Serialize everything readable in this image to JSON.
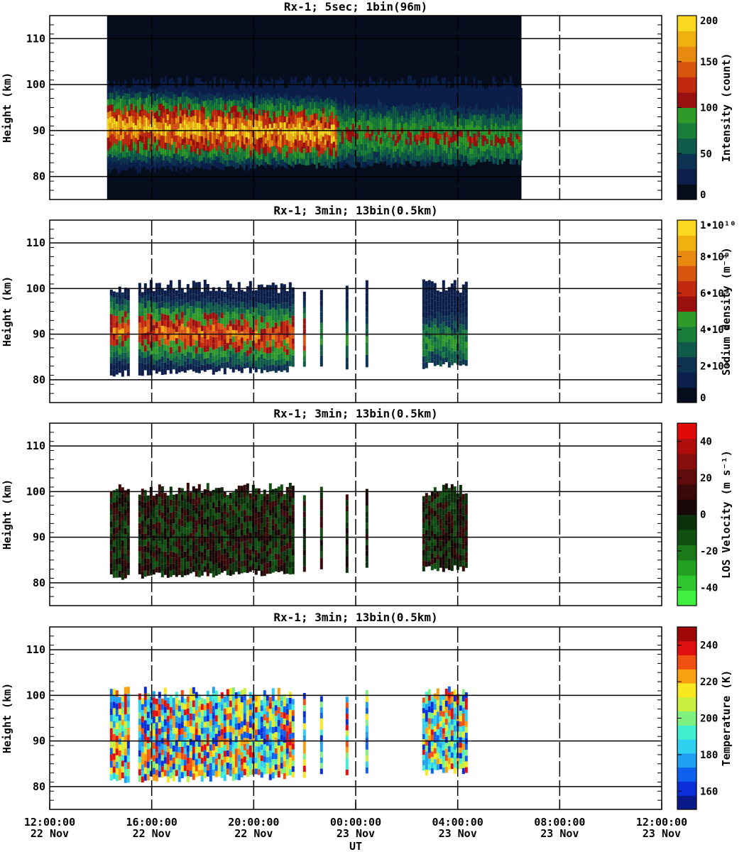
{
  "chart_data": [
    {
      "type": "heatmap",
      "title": "Rx-1;  5sec; 1bin(96m)",
      "ylabel": "Height (km)",
      "ylim": [
        75,
        115
      ],
      "yticks": [
        "80",
        "90",
        "100",
        "110"
      ],
      "colorbar": {
        "label": "Intensity (count)",
        "range": [
          0,
          200
        ],
        "ticks": [
          "0",
          "50",
          "100",
          "150",
          "200"
        ],
        "colors": [
          "#060d1c",
          "#0b1f4a",
          "#0e3352",
          "#0f5a48",
          "#1a7e3a",
          "#2f9a2a",
          "#9a1010",
          "#c22a10",
          "#d85510",
          "#e88a10",
          "#f0b010",
          "#f8d820"
        ]
      },
      "x_range": [
        "14:15:00 22 Nov",
        "06:30:00 23 Nov"
      ],
      "layer_peak_km": 91,
      "layer_span_km": [
        83,
        100
      ]
    },
    {
      "type": "heatmap",
      "title": "Rx-1; 3min; 13bin(0.5km)",
      "ylabel": "Height (km)",
      "ylim": [
        75,
        115
      ],
      "yticks": [
        "80",
        "90",
        "100",
        "110"
      ],
      "colorbar": {
        "label": "Sodium density (m⁻³)",
        "range": [
          0,
          10000000000.0
        ],
        "ticks": [
          "0",
          "2•10⁹",
          "4•10⁹",
          "6•10⁹",
          "8•10⁹",
          "1•10¹⁰"
        ],
        "colors": [
          "#060d1c",
          "#0b1f4a",
          "#0e3352",
          "#0f5a48",
          "#1a7e3a",
          "#2f9a2a",
          "#9a1010",
          "#c22a10",
          "#d85510",
          "#e88a10",
          "#f0b010",
          "#f8d820"
        ]
      },
      "x_range": [
        "14:15:00 22 Nov",
        "04:20:00 23 Nov"
      ]
    },
    {
      "type": "heatmap",
      "title": "Rx-1; 3min; 13bin(0.5km)",
      "ylabel": "Height (km)",
      "ylim": [
        75,
        115
      ],
      "yticks": [
        "80",
        "90",
        "100",
        "110"
      ],
      "colorbar": {
        "label": "LOS Velocity (m s⁻¹)",
        "range": [
          -50,
          50
        ],
        "ticks": [
          "-40",
          "-20",
          "0",
          "20",
          "40"
        ],
        "colors": [
          "#40f040",
          "#2ec82e",
          "#22a022",
          "#1a7a1a",
          "#124f12",
          "#0c2f0c",
          "#1a0808",
          "#3a0a0a",
          "#600c0c",
          "#880e0e",
          "#b00c0c",
          "#e00a0a"
        ]
      },
      "x_range": [
        "14:15:00 22 Nov",
        "04:20:00 23 Nov"
      ]
    },
    {
      "type": "heatmap",
      "title": "Rx-1; 3min; 13bin(0.5km)",
      "ylabel": "Height (km)",
      "ylim": [
        75,
        115
      ],
      "yticks": [
        "80",
        "90",
        "100",
        "110"
      ],
      "colorbar": {
        "label": "Temperature (K)",
        "range": [
          150,
          250
        ],
        "ticks": [
          "160",
          "180",
          "200",
          "220",
          "240"
        ],
        "colors": [
          "#0a1a8a",
          "#0a2ed8",
          "#1060f0",
          "#20a0f0",
          "#30d0f0",
          "#40f0d0",
          "#80f080",
          "#c8f040",
          "#f8e820",
          "#f8a010",
          "#f05010",
          "#e01010",
          "#a00808"
        ]
      },
      "x_range": [
        "14:15:00 22 Nov",
        "04:20:00 23 Nov"
      ]
    }
  ],
  "x_axis": {
    "label": "UT",
    "ticks": [
      {
        "time": "12:00:00",
        "date": "22 Nov"
      },
      {
        "time": "16:00:00",
        "date": "22 Nov"
      },
      {
        "time": "20:00:00",
        "date": "22 Nov"
      },
      {
        "time": "00:00:00",
        "date": "23 Nov"
      },
      {
        "time": "04:00:00",
        "date": "23 Nov"
      },
      {
        "time": "08:00:00",
        "date": "23 Nov"
      },
      {
        "time": "12:00:00",
        "date": "23 Nov"
      }
    ],
    "range_hours": [
      0,
      24
    ]
  }
}
